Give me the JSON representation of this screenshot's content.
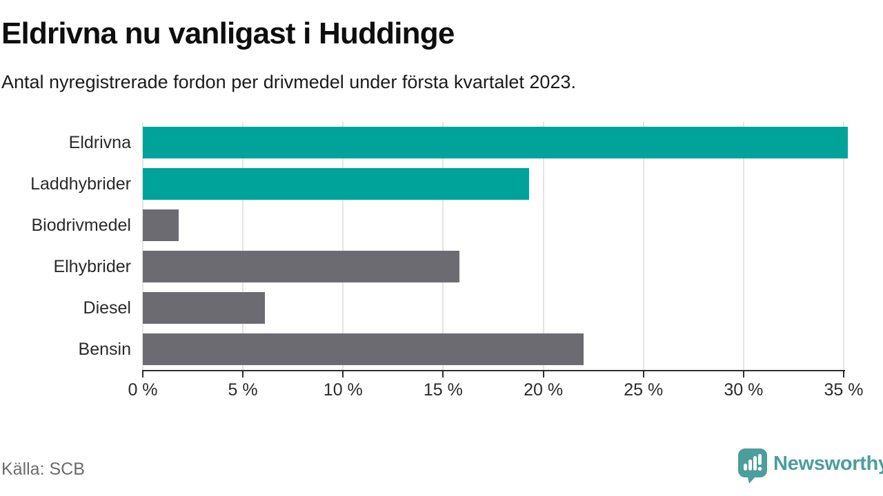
{
  "header": {
    "title": "Eldrivna nu vanligast i Huddinge",
    "subtitle": "Antal nyregistrerade fordon per drivmedel under första kvartalet 2023."
  },
  "chart_data": {
    "type": "bar",
    "orientation": "horizontal",
    "title": "Eldrivna nu vanligast i Huddinge",
    "subtitle": "Antal nyregistrerade fordon per drivmedel under första kvartalet 2023.",
    "categories": [
      "Eldrivna",
      "Laddhybrider",
      "Biodrivmedel",
      "Elhybrider",
      "Diesel",
      "Bensin"
    ],
    "values": [
      35.2,
      19.3,
      1.8,
      15.8,
      6.1,
      22.0
    ],
    "unit": "%",
    "bar_colors": [
      "#00a39a",
      "#00a39a",
      "#6c6b72",
      "#6c6b72",
      "#6c6b72",
      "#6c6b72"
    ],
    "highlight_color": "#00a39a",
    "default_color": "#6c6b72",
    "xlabel": "",
    "ylabel": "",
    "xlim": [
      0,
      35
    ],
    "ticks": [
      0,
      5,
      10,
      15,
      20,
      25,
      30,
      35
    ],
    "tick_labels": [
      "0 %",
      "5 %",
      "10 %",
      "15 %",
      "20 %",
      "25 %",
      "30 %",
      "35 %"
    ],
    "grid": true,
    "legend": false
  },
  "footer": {
    "source": "Källa: SCB",
    "brand": "Newsworthy",
    "brand_color": "#4b9e9b"
  }
}
